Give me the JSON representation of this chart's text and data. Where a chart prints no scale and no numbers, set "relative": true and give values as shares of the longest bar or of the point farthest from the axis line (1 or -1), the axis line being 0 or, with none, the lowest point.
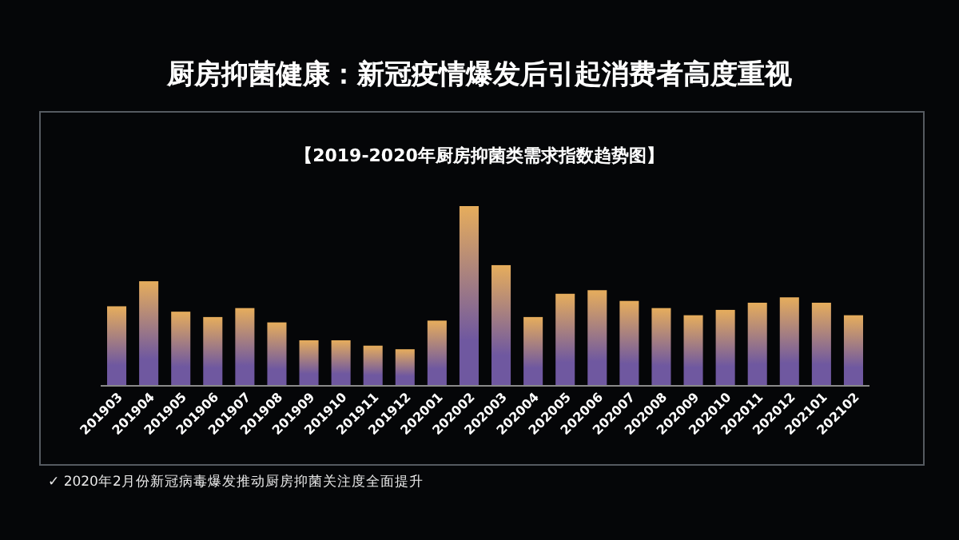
{
  "chart_data": {
    "type": "bar",
    "relative": true,
    "title": "厨房抑菌健康：新冠疫情爆发后引起消费者高度重视",
    "subtitle": "【2019-2020年厨房抑菌类需求指数趋势图】",
    "annotations": [
      "✓ 2020年2月份新冠病毒爆发推动厨房抑菌关注度全面提升"
    ],
    "categories": [
      "201903",
      "201904",
      "201905",
      "201906",
      "201907",
      "201908",
      "201909",
      "201910",
      "201911",
      "201912",
      "202001",
      "202002",
      "202003",
      "202004",
      "202005",
      "202006",
      "202007",
      "202008",
      "202009",
      "202010",
      "202011",
      "202012",
      "202101",
      "202102"
    ],
    "series": [
      {
        "color": "#e6ad5c",
        "values": [
          0.44,
          0.58,
          0.41,
          0.38,
          0.43,
          0.35,
          0.25,
          0.25,
          0.22,
          0.2,
          0.36,
          1,
          0.67,
          0.38,
          0.51,
          0.53,
          0.47,
          0.43,
          0.39,
          0.42,
          0.46,
          0.49,
          0.46,
          0.39
        ]
      }
    ]
  }
}
